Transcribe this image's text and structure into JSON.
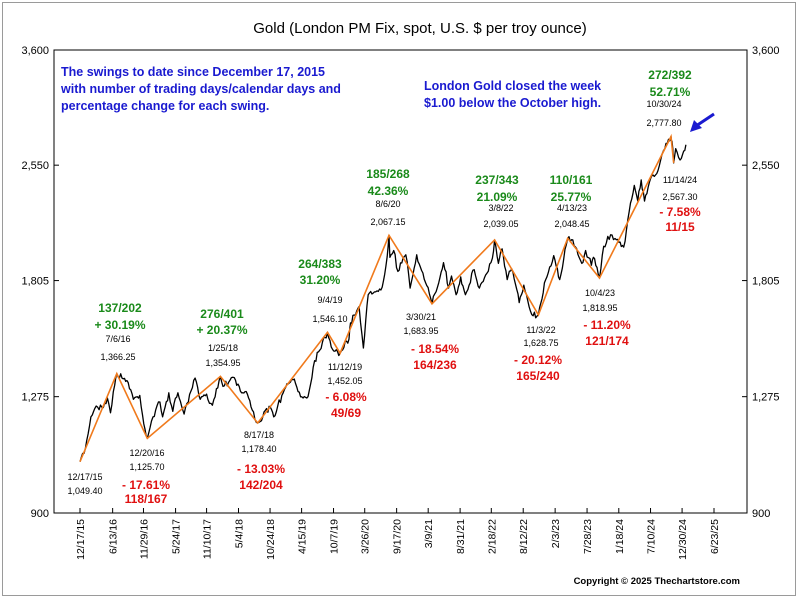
{
  "chart_data": {
    "type": "line",
    "title": "Gold (London PM Fix, spot, U.S. $ per troy ounce)",
    "xlabel": "",
    "ylabel": "",
    "ylim": [
      900,
      3600
    ],
    "y_ticks": [
      "900",
      "1,275",
      "1,805",
      "2,550",
      "3,600"
    ],
    "y_tick_values": [
      900,
      1275,
      1805,
      2550,
      3600
    ],
    "y_scale": "log",
    "x_ticks": [
      "12/17/15",
      "6/13/16",
      "11/29/16",
      "5/24/17",
      "11/10/17",
      "5/4/18",
      "10/24/18",
      "4/15/19",
      "10/7/19",
      "3/26/20",
      "9/17/20",
      "3/9/21",
      "8/31/21",
      "2/18/22",
      "8/12/22",
      "2/3/23",
      "7/28/23",
      "1/18/24",
      "7/10/24",
      "12/30/24",
      "6/23/25"
    ],
    "x_tick_dates": [
      "2015-12-17",
      "2016-06-13",
      "2016-11-29",
      "2017-05-24",
      "2017-11-10",
      "2018-05-04",
      "2018-10-24",
      "2019-04-15",
      "2019-10-07",
      "2020-03-26",
      "2020-09-17",
      "2021-03-09",
      "2021-08-31",
      "2022-02-18",
      "2022-08-12",
      "2023-02-03",
      "2023-07-28",
      "2024-01-18",
      "2024-07-10",
      "2024-12-30",
      "2025-06-23"
    ],
    "grid": false,
    "series": [
      {
        "type": "line",
        "color": "#000000",
        "points": [
          [
            "2015-12-17",
            1049.4
          ],
          [
            "2016-01-15",
            1090
          ],
          [
            "2016-02-15",
            1200
          ],
          [
            "2016-03-15",
            1240
          ],
          [
            "2016-04-15",
            1235
          ],
          [
            "2016-05-15",
            1270
          ],
          [
            "2016-06-01",
            1215
          ],
          [
            "2016-06-24",
            1320
          ],
          [
            "2016-07-06",
            1366.25
          ],
          [
            "2016-08-10",
            1345
          ],
          [
            "2016-09-06",
            1330
          ],
          [
            "2016-10-05",
            1265
          ],
          [
            "2016-11-09",
            1280
          ],
          [
            "2016-12-01",
            1175
          ],
          [
            "2016-12-20",
            1125.7
          ],
          [
            "2017-01-20",
            1200
          ],
          [
            "2017-02-27",
            1255
          ],
          [
            "2017-03-14",
            1200
          ],
          [
            "2017-04-17",
            1290
          ],
          [
            "2017-05-09",
            1220
          ],
          [
            "2017-06-06",
            1290
          ],
          [
            "2017-07-10",
            1210
          ],
          [
            "2017-09-08",
            1348
          ],
          [
            "2017-10-06",
            1265
          ],
          [
            "2017-11-10",
            1285
          ],
          [
            "2017-12-12",
            1243
          ],
          [
            "2018-01-25",
            1354.95
          ],
          [
            "2018-02-08",
            1315
          ],
          [
            "2018-03-26",
            1350
          ],
          [
            "2018-04-11",
            1350
          ],
          [
            "2018-05-21",
            1290
          ],
          [
            "2018-06-15",
            1295
          ],
          [
            "2018-07-18",
            1225
          ],
          [
            "2018-08-17",
            1178.4
          ],
          [
            "2018-09-14",
            1200
          ],
          [
            "2018-10-26",
            1235
          ],
          [
            "2018-11-13",
            1200
          ],
          [
            "2019-01-04",
            1290
          ],
          [
            "2019-02-20",
            1345
          ],
          [
            "2019-04-23",
            1270
          ],
          [
            "2019-05-20",
            1275
          ],
          [
            "2019-06-25",
            1420
          ],
          [
            "2019-08-07",
            1500
          ],
          [
            "2019-09-04",
            1546.1
          ],
          [
            "2019-10-01",
            1470
          ],
          [
            "2019-11-12",
            1452.05
          ],
          [
            "2019-12-31",
            1515
          ],
          [
            "2020-01-08",
            1590
          ],
          [
            "2020-02-24",
            1670
          ],
          [
            "2020-03-19",
            1475
          ],
          [
            "2020-04-14",
            1730
          ],
          [
            "2020-05-18",
            1745
          ],
          [
            "2020-06-30",
            1770
          ],
          [
            "2020-07-27",
            1940
          ],
          [
            "2020-08-06",
            2067.15
          ],
          [
            "2020-08-11",
            1935
          ],
          [
            "2020-09-01",
            1975
          ],
          [
            "2020-09-24",
            1855
          ],
          [
            "2020-11-06",
            1950
          ],
          [
            "2020-11-30",
            1765
          ],
          [
            "2021-01-05",
            1950
          ],
          [
            "2021-02-01",
            1860
          ],
          [
            "2021-03-30",
            1683.95
          ],
          [
            "2021-04-29",
            1770
          ],
          [
            "2021-06-01",
            1905
          ],
          [
            "2021-06-29",
            1765
          ],
          [
            "2021-07-15",
            1830
          ],
          [
            "2021-08-09",
            1730
          ],
          [
            "2021-09-03",
            1825
          ],
          [
            "2021-09-29",
            1730
          ],
          [
            "2021-11-16",
            1865
          ],
          [
            "2021-12-15",
            1765
          ],
          [
            "2022-01-25",
            1845
          ],
          [
            "2022-02-24",
            1930
          ],
          [
            "2022-03-08",
            2039.05
          ],
          [
            "2022-03-29",
            1900
          ],
          [
            "2022-04-18",
            1985
          ],
          [
            "2022-05-16",
            1810
          ],
          [
            "2022-06-10",
            1870
          ],
          [
            "2022-07-21",
            1690
          ],
          [
            "2022-08-15",
            1780
          ],
          [
            "2022-09-28",
            1630
          ],
          [
            "2022-11-03",
            1628.75
          ],
          [
            "2022-12-13",
            1810
          ],
          [
            "2023-01-26",
            1945
          ],
          [
            "2023-02-28",
            1810
          ],
          [
            "2023-04-13",
            2048.45
          ],
          [
            "2023-05-04",
            2040
          ],
          [
            "2023-06-29",
            1900
          ],
          [
            "2023-07-20",
            1975
          ],
          [
            "2023-08-21",
            1890
          ],
          [
            "2023-09-01",
            1935
          ],
          [
            "2023-10-04",
            1818.95
          ],
          [
            "2023-10-27",
            2000
          ],
          [
            "2023-12-04",
            2070
          ],
          [
            "2024-01-05",
            2040
          ],
          [
            "2024-02-14",
            1995
          ],
          [
            "2024-03-08",
            2170
          ],
          [
            "2024-04-12",
            2400
          ],
          [
            "2024-05-01",
            2290
          ],
          [
            "2024-05-20",
            2440
          ],
          [
            "2024-06-07",
            2290
          ],
          [
            "2024-07-17",
            2470
          ],
          [
            "2024-08-20",
            2510
          ],
          [
            "2024-09-26",
            2680
          ],
          [
            "2024-10-30",
            2777.8
          ],
          [
            "2024-11-05",
            2740
          ],
          [
            "2024-11-14",
            2567.3
          ],
          [
            "2024-11-25",
            2680
          ],
          [
            "2024-12-19",
            2590
          ],
          [
            "2025-01-08",
            2660
          ],
          [
            "2025-01-20",
            2710
          ]
        ]
      },
      {
        "type": "line",
        "name": "swings",
        "color": "#f07a1c",
        "points": [
          [
            "2015-12-17",
            1049.4
          ],
          [
            "2016-07-06",
            1366.25
          ],
          [
            "2016-12-20",
            1125.7
          ],
          [
            "2018-01-25",
            1354.95
          ],
          [
            "2018-08-17",
            1178.4
          ],
          [
            "2019-09-04",
            1546.1
          ],
          [
            "2019-11-12",
            1452.05
          ],
          [
            "2020-08-06",
            2067.15
          ],
          [
            "2021-03-30",
            1683.95
          ],
          [
            "2022-03-08",
            2039.05
          ],
          [
            "2022-11-03",
            1628.75
          ],
          [
            "2023-04-13",
            2048.45
          ],
          [
            "2023-10-04",
            1818.95
          ],
          [
            "2024-10-30",
            2777.8
          ],
          [
            "2024-11-14",
            2567.3
          ]
        ]
      }
    ],
    "annotations": {
      "points": [
        {
          "date_text": "12/17/15",
          "value_text": "1,049.40"
        },
        {
          "date_text": "7/6/16",
          "value_text": "1,366.25"
        },
        {
          "date_text": "12/20/16",
          "value_text": "1,125.70"
        },
        {
          "date_text": "1/25/18",
          "value_text": "1,354.95"
        },
        {
          "date_text": "8/17/18",
          "value_text": "1,178.40"
        },
        {
          "date_text": "9/4/19",
          "value_text": "1,546.10"
        },
        {
          "date_text": "11/12/19",
          "value_text": "1,452.05"
        },
        {
          "date_text": "8/6/20",
          "value_text": "2,067.15"
        },
        {
          "date_text": "3/30/21",
          "value_text": "1,683.95"
        },
        {
          "date_text": "3/8/22",
          "value_text": "2,039.05"
        },
        {
          "date_text": "11/3/22",
          "value_text": "1,628.75"
        },
        {
          "date_text": "4/13/23",
          "value_text": "2,048.45"
        },
        {
          "date_text": "10/4/23",
          "value_text": "1,818.95"
        },
        {
          "date_text": "10/30/24",
          "value_text": "2,777.80"
        },
        {
          "date_text": "11/14/24",
          "value_text": "2,567.30"
        }
      ],
      "up_swings": [
        {
          "days": "137/202",
          "pct": "+ 30.19%"
        },
        {
          "days": "276/401",
          "pct": "+ 20.37%"
        },
        {
          "days": "264/383",
          "pct": "31.20%"
        },
        {
          "days": "185/268",
          "pct": "42.36%"
        },
        {
          "days": "237/343",
          "pct": "21.09%"
        },
        {
          "days": "110/161",
          "pct": "25.77%"
        },
        {
          "days": "272/392",
          "pct": "52.71%"
        }
      ],
      "down_swings": [
        {
          "pct": "- 17.61%",
          "days": "118/167"
        },
        {
          "pct": "- 13.03%",
          "days": "142/204"
        },
        {
          "pct": "- 6.08%",
          "days": "49/69"
        },
        {
          "pct": "- 18.54%",
          "days": "164/236"
        },
        {
          "pct": "- 20.12%",
          "days": "165/240"
        },
        {
          "pct": "- 11.20%",
          "days": "121/174"
        },
        {
          "pct": "- 7.58%",
          "days": "11/15"
        }
      ],
      "notes": {
        "left": [
          "The swings to date since December 17, 2015",
          "with number of trading days/calendar days and",
          "percentage change for each swing."
        ],
        "right": [
          "London Gold closed the week",
          "$1.00 below the October high."
        ]
      }
    },
    "copyright": "Copyright © 2025 Thechartstore.com"
  }
}
